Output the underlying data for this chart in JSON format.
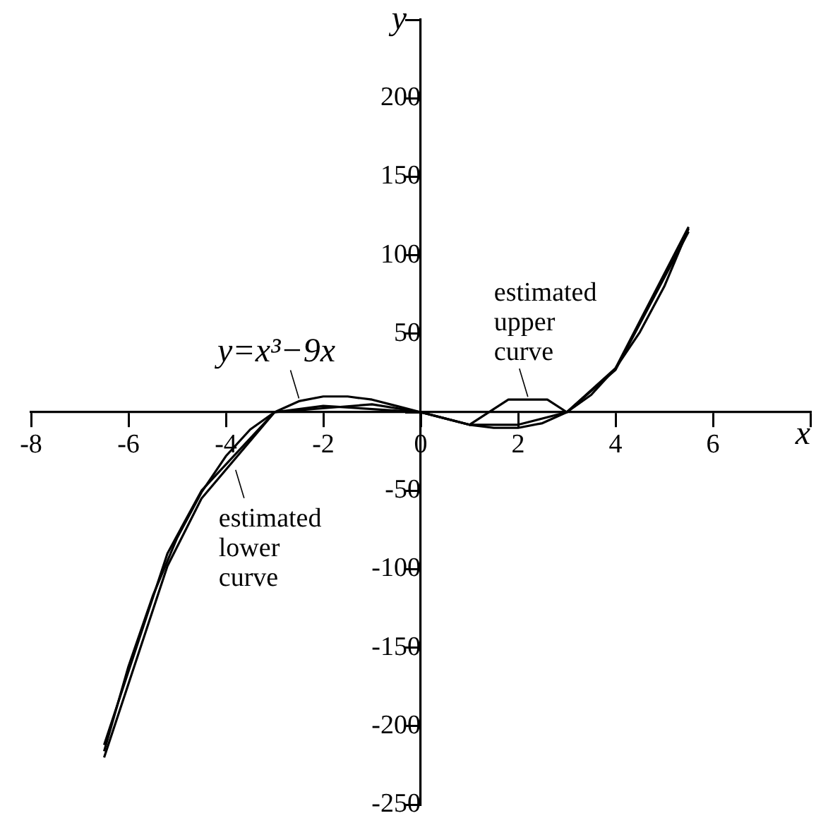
{
  "chart_data": {
    "type": "line",
    "xlabel": "x",
    "ylabel": "y",
    "xlim": [
      -8,
      8
    ],
    "ylim": [
      -250,
      250
    ],
    "xticks": [
      -8,
      -6,
      -4,
      -2,
      0,
      2,
      4,
      6,
      {
        "value": 8,
        "label": null
      }
    ],
    "yticks": [
      -250,
      -200,
      -150,
      -100,
      -50,
      {
        "value": 0,
        "label": null
      },
      50,
      100,
      150,
      200,
      {
        "value": 250,
        "label": null
      }
    ],
    "grid": false,
    "legend": false,
    "marker": "none",
    "line_style": "solid",
    "series": [
      {
        "color": "#000000",
        "x": [
          -6.5,
          -6,
          -5.5,
          -5,
          -4.5,
          -4,
          -3.5,
          -3,
          -2.5,
          -2,
          -1.5,
          -1,
          -0.5,
          0,
          0.5,
          1,
          1.5,
          2,
          2.5,
          3,
          3.5,
          4,
          4.5,
          5,
          5.5
        ],
        "values": [
          -216,
          -162,
          -117,
          -80,
          -51,
          -28,
          -11,
          0,
          7,
          10,
          10,
          8,
          4,
          0,
          -4,
          -8,
          -10,
          -10,
          -7,
          0,
          11,
          28,
          51,
          80,
          117
        ]
      },
      {
        "color": "#000000",
        "x": [
          -6.5,
          -5.2,
          -4.5,
          -3,
          -2,
          0,
          1,
          1.8,
          2.6,
          3,
          4,
          5.5
        ],
        "values": [
          -212,
          -90,
          -50,
          0,
          4,
          0,
          -8,
          8,
          8,
          0,
          28,
          118
        ]
      },
      {
        "color": "#000000",
        "x": [
          -6.5,
          -5.2,
          -4.5,
          -3,
          -1,
          0,
          1,
          2,
          3,
          4,
          5.5
        ],
        "values": [
          -220,
          -98,
          -55,
          0,
          5,
          0,
          -8,
          -8,
          0,
          27,
          115
        ]
      }
    ],
    "annotations": [
      {
        "text": "y=x³−9x",
        "x": -2.5,
        "y": 7
      },
      {
        "text": "estimated upper curve",
        "x": 2.2,
        "y": 8
      },
      {
        "text": "estimated lower curve",
        "x": -3.8,
        "y": -35
      }
    ]
  }
}
